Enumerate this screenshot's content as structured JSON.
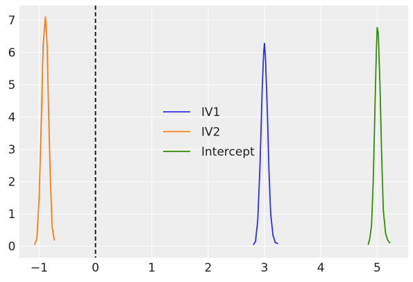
{
  "chart_data": {
    "type": "line",
    "title": "",
    "xlabel": "",
    "ylabel": "",
    "xlim": [
      -1.35,
      5.55
    ],
    "ylim": [
      -0.35,
      7.45
    ],
    "x_ticks": [
      -1,
      0,
      1,
      2,
      3,
      4,
      5
    ],
    "x_tick_labels": [
      "−1",
      "0",
      "1",
      "2",
      "3",
      "4",
      "5"
    ],
    "y_ticks": [
      0,
      1,
      2,
      3,
      4,
      5,
      6,
      7
    ],
    "y_tick_labels": [
      "0",
      "1",
      "2",
      "3",
      "4",
      "5",
      "6",
      "7"
    ],
    "grid": true,
    "background": "#eeeeee",
    "grid_color": "#ffffff",
    "reference_line": {
      "x": 0,
      "style": "dashed",
      "color": "#000000"
    },
    "legend": {
      "placement": "center"
    },
    "series": [
      {
        "name": "IV1",
        "color": "#2a2eec",
        "points": [
          [
            2.8,
            0.05
          ],
          [
            2.84,
            0.15
          ],
          [
            2.88,
            0.8
          ],
          [
            2.92,
            2.5
          ],
          [
            2.96,
            4.9
          ],
          [
            2.985,
            6.0
          ],
          [
            3.0,
            6.28
          ],
          [
            3.02,
            5.7
          ],
          [
            3.05,
            4.2
          ],
          [
            3.08,
            2.3
          ],
          [
            3.11,
            1.0
          ],
          [
            3.15,
            0.35
          ],
          [
            3.19,
            0.12
          ],
          [
            3.24,
            0.08
          ]
        ]
      },
      {
        "name": "IV2",
        "color": "#fa7c17",
        "points": [
          [
            -1.08,
            0.05
          ],
          [
            -1.04,
            0.25
          ],
          [
            -1.0,
            1.5
          ],
          [
            -0.96,
            4.0
          ],
          [
            -0.93,
            6.2
          ],
          [
            -0.89,
            7.1
          ],
          [
            -0.86,
            6.3
          ],
          [
            -0.83,
            4.0
          ],
          [
            -0.8,
            2.0
          ],
          [
            -0.77,
            0.6
          ],
          [
            -0.73,
            0.18
          ]
        ]
      },
      {
        "name": "Intercept",
        "color": "#328c06",
        "points": [
          [
            4.84,
            0.05
          ],
          [
            4.87,
            0.25
          ],
          [
            4.9,
            0.65
          ],
          [
            4.93,
            2.0
          ],
          [
            4.96,
            4.2
          ],
          [
            4.985,
            6.0
          ],
          [
            5.0,
            6.77
          ],
          [
            5.02,
            6.6
          ],
          [
            5.05,
            5.0
          ],
          [
            5.08,
            2.8
          ],
          [
            5.11,
            1.1
          ],
          [
            5.15,
            0.4
          ],
          [
            5.19,
            0.18
          ],
          [
            5.23,
            0.1
          ]
        ]
      }
    ]
  }
}
